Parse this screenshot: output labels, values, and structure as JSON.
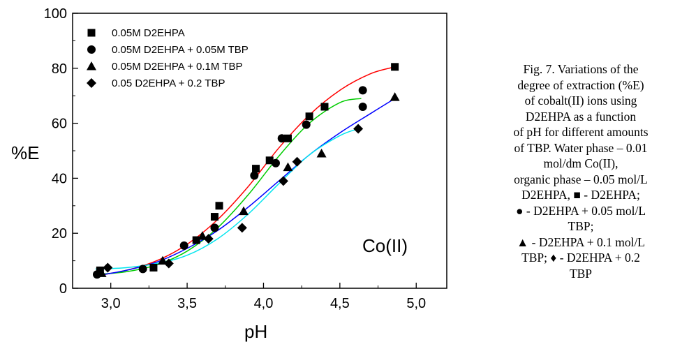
{
  "chart_data": {
    "type": "scatter",
    "xlabel": "pH",
    "ylabel": "%E",
    "xlim": [
      2.75,
      5.2
    ],
    "ylim": [
      0,
      100
    ],
    "x_ticks": [
      3.0,
      3.5,
      4.0,
      4.5,
      5.0
    ],
    "x_tick_labels": [
      "3,0",
      "3,5",
      "4,0",
      "4,5",
      "5,0"
    ],
    "y_ticks": [
      0,
      20,
      40,
      60,
      80,
      100
    ],
    "y_tick_labels": [
      "0",
      "20",
      "40",
      "60",
      "80",
      "100"
    ],
    "legend_position": "top-left",
    "annotation": "Co(II)",
    "series": [
      {
        "name": "0.05M D2EHPA",
        "marker": "square",
        "points": [
          [
            2.93,
            6.5
          ],
          [
            3.28,
            7.5
          ],
          [
            3.56,
            17.5
          ],
          [
            3.68,
            26
          ],
          [
            3.71,
            30
          ],
          [
            3.95,
            43.5
          ],
          [
            4.04,
            46.5
          ],
          [
            4.16,
            54.5
          ],
          [
            4.3,
            62.5
          ],
          [
            4.4,
            66
          ],
          [
            4.86,
            80.5
          ]
        ],
        "fit_color": "#ff0000",
        "fit_curve": [
          [
            2.9,
            4.5
          ],
          [
            3.1,
            6.5
          ],
          [
            3.3,
            10
          ],
          [
            3.5,
            16
          ],
          [
            3.7,
            25
          ],
          [
            3.9,
            37
          ],
          [
            4.1,
            51
          ],
          [
            4.3,
            63
          ],
          [
            4.5,
            72
          ],
          [
            4.7,
            78
          ],
          [
            4.86,
            80.5
          ]
        ]
      },
      {
        "name": "0.05M D2EHPA + 0.05M TBP",
        "marker": "circle",
        "points": [
          [
            2.91,
            5
          ],
          [
            3.21,
            7
          ],
          [
            3.48,
            15.5
          ],
          [
            3.68,
            22
          ],
          [
            3.94,
            41
          ],
          [
            4.08,
            45.5
          ],
          [
            4.12,
            54.5
          ],
          [
            4.28,
            59.5
          ],
          [
            4.65,
            72
          ],
          [
            4.65,
            66
          ]
        ],
        "fit_color": "#00cc00",
        "fit_curve": [
          [
            2.9,
            5
          ],
          [
            3.1,
            6
          ],
          [
            3.3,
            8.5
          ],
          [
            3.5,
            13.5
          ],
          [
            3.7,
            22
          ],
          [
            3.9,
            34
          ],
          [
            4.1,
            48
          ],
          [
            4.3,
            60
          ],
          [
            4.5,
            67.5
          ],
          [
            4.64,
            69
          ]
        ]
      },
      {
        "name": "0.05M D2EHPA + 0.1M TBP",
        "marker": "triangle",
        "points": [
          [
            2.94,
            5.5
          ],
          [
            3.34,
            10
          ],
          [
            3.6,
            19
          ],
          [
            3.87,
            28
          ],
          [
            4.16,
            44
          ],
          [
            4.38,
            49
          ],
          [
            4.86,
            69.5
          ]
        ],
        "fit_color": "#0000ff",
        "fit_curve": [
          [
            2.9,
            4.5
          ],
          [
            3.1,
            6.5
          ],
          [
            3.3,
            9.5
          ],
          [
            3.5,
            14.5
          ],
          [
            3.7,
            21
          ],
          [
            3.9,
            29.5
          ],
          [
            4.1,
            39
          ],
          [
            4.3,
            48.5
          ],
          [
            4.5,
            56.5
          ],
          [
            4.7,
            63.5
          ],
          [
            4.86,
            69
          ]
        ]
      },
      {
        "name": "0.05 D2EHPA + 0.2 TBP",
        "marker": "diamond",
        "points": [
          [
            2.98,
            7.5
          ],
          [
            3.38,
            9
          ],
          [
            3.64,
            18
          ],
          [
            3.86,
            22
          ],
          [
            4.13,
            39
          ],
          [
            4.22,
            46
          ],
          [
            4.62,
            58
          ]
        ],
        "fit_color": "#00e5ee",
        "fit_curve": [
          [
            2.9,
            7
          ],
          [
            3.1,
            7.5
          ],
          [
            3.3,
            9
          ],
          [
            3.5,
            12
          ],
          [
            3.7,
            18
          ],
          [
            3.9,
            27
          ],
          [
            4.1,
            38
          ],
          [
            4.3,
            48.5
          ],
          [
            4.5,
            55.5
          ],
          [
            4.62,
            58
          ]
        ]
      }
    ]
  },
  "caption": {
    "lines": [
      "Fig. 7. Variations of the",
      "degree of extraction (%E)",
      "of cobalt(II) ions using",
      "D2EHPA as a function",
      "of pH for different amounts",
      "of TBP. Water phase – 0.01",
      "mol/dm Co(II),",
      "organic phase – 0.05 mol/L",
      "D2EHPA, ■ - D2EHPA;",
      "● - D2EHPA + 0.05 mol/L",
      "TBP;",
      "▲ - D2EHPA + 0.1 mol/L",
      "TBP; ♦ - D2EHPA + 0.2",
      "TBP"
    ]
  }
}
